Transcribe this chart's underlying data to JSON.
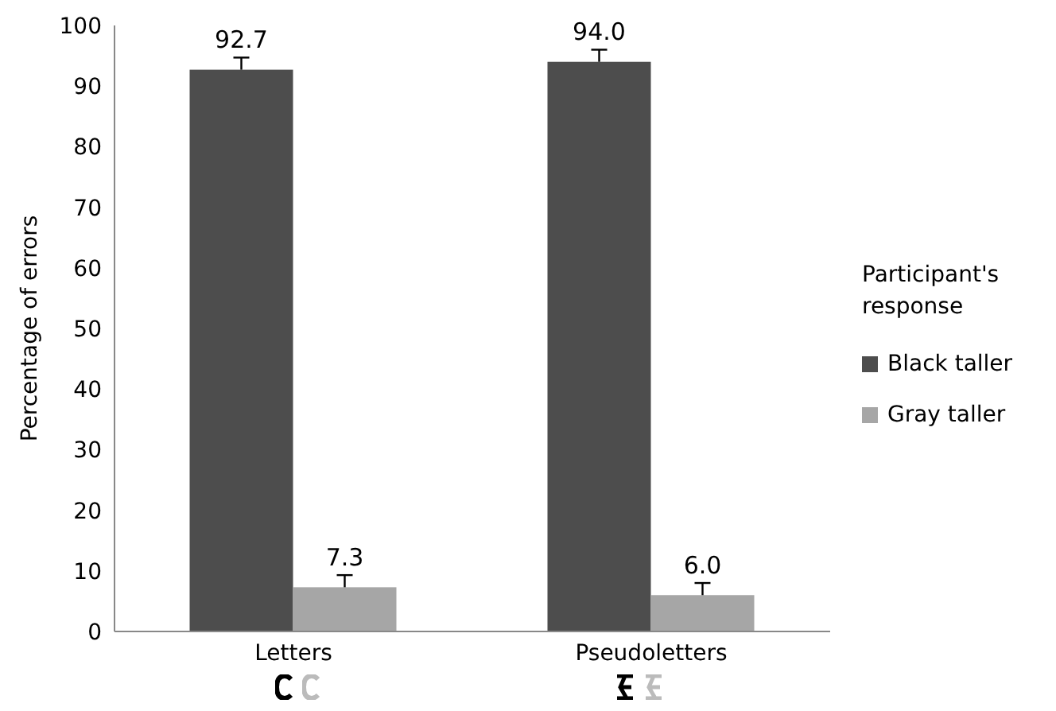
{
  "chart_data": {
    "type": "bar",
    "ylabel": "Percentage of errors",
    "legend_title": "Participant's response",
    "categories": [
      "Letters",
      "Pseudoletters"
    ],
    "series": [
      {
        "name": "Black taller",
        "color": "#4d4d4d",
        "values": [
          92.7,
          94.0
        ],
        "errors": [
          [
            92.7,
            94.7
          ],
          [
            94.0,
            96.0
          ]
        ],
        "value_labels": [
          "92.7",
          "94.0"
        ]
      },
      {
        "name": "Gray taller",
        "color": "#a6a6a6",
        "values": [
          7.3,
          6.0
        ],
        "errors": [
          [
            7.3,
            9.3
          ],
          [
            6.0,
            8.0
          ]
        ],
        "value_labels": [
          "7.3",
          "6.0"
        ]
      }
    ],
    "ylim": [
      0,
      100
    ],
    "yticks": [
      0,
      10,
      20,
      30,
      40,
      50,
      60,
      70,
      80,
      90,
      100
    ],
    "grid": false,
    "legend": "right"
  }
}
